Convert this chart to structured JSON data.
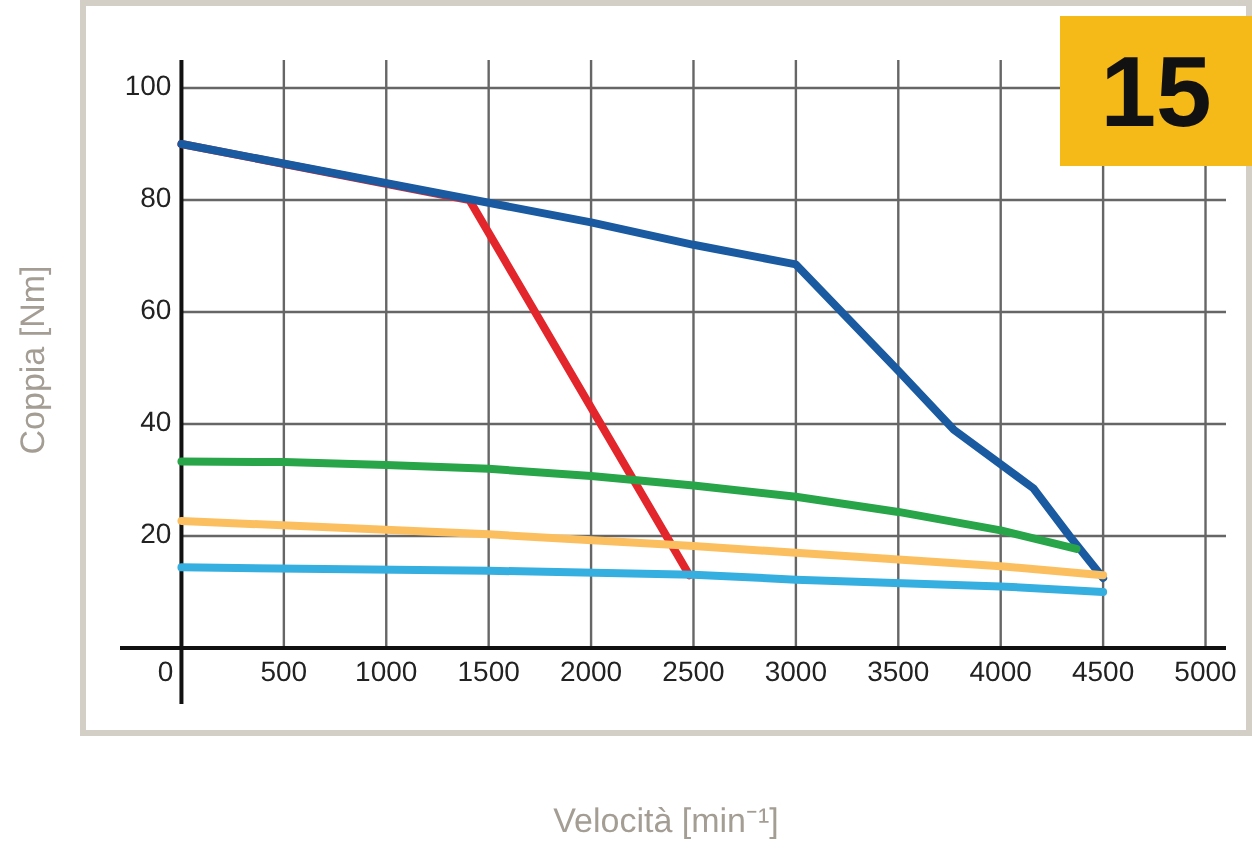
{
  "chart_data": {
    "type": "line",
    "xlabel": "Velocità [min⁻¹]",
    "ylabel": "Coppia [Nm]",
    "annotations": [
      "15"
    ],
    "xlim": [
      -300,
      5100
    ],
    "ylim": [
      -10,
      105
    ],
    "xticks": [
      0,
      500,
      1000,
      1500,
      2000,
      2500,
      3000,
      3500,
      4000,
      4500,
      5000
    ],
    "yticks": [
      20,
      40,
      60,
      80,
      100
    ],
    "grid": true,
    "series": [
      {
        "color": "#e3262b",
        "x": [
          0,
          1406,
          2480
        ],
        "values": [
          90,
          80,
          13
        ]
      },
      {
        "color": "#1a5aa0",
        "x": [
          0,
          1500,
          2000,
          2500,
          3000,
          3500,
          3770,
          4160,
          4336,
          4500
        ],
        "values": [
          90,
          79.5,
          76,
          72,
          68.5,
          49.5,
          39,
          28.5,
          20,
          12.5
        ]
      },
      {
        "color": "#27a548",
        "x": [
          0,
          500,
          1000,
          1500,
          2000,
          2500,
          3000,
          3500,
          4000,
          4370
        ],
        "values": [
          33.3,
          33.2,
          32.7,
          32,
          30.7,
          29,
          27,
          24.3,
          21,
          17.7
        ]
      },
      {
        "color": "#fbbf5f",
        "x": [
          0,
          1500,
          2500,
          3000,
          4000,
          4500
        ],
        "values": [
          22.7,
          20.3,
          18.2,
          17,
          14.6,
          13
        ]
      },
      {
        "color": "#35aee0",
        "x": [
          0,
          1500,
          2500,
          3000,
          4000,
          4500
        ],
        "values": [
          14.4,
          13.8,
          13.1,
          12.2,
          11,
          10
        ]
      }
    ]
  }
}
